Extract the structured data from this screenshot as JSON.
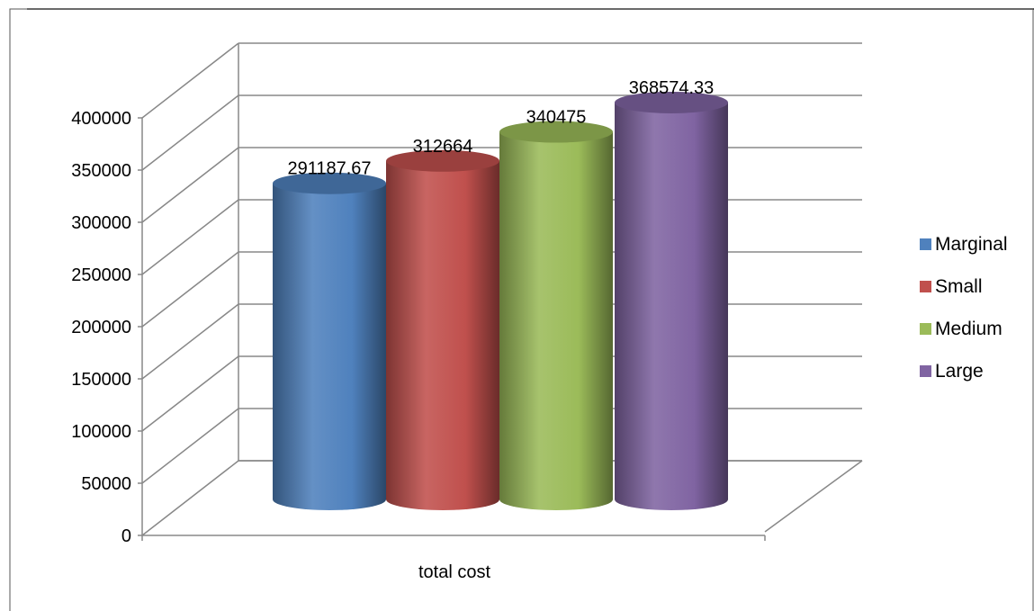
{
  "chart_data": {
    "type": "bar",
    "style": "3d-cylinder",
    "title": "",
    "xlabel": "",
    "ylabel": "",
    "categories": [
      "total cost"
    ],
    "series": [
      {
        "name": "Marginal",
        "values": [
          291187.67
        ],
        "value_label": "291187.67",
        "color": "#4F81BD"
      },
      {
        "name": "Small",
        "values": [
          312664
        ],
        "value_label": "312664",
        "color": "#C0504D"
      },
      {
        "name": "Medium",
        "values": [
          340475
        ],
        "value_label": "340475",
        "color": "#9BBB59"
      },
      {
        "name": "Large",
        "values": [
          368574.33
        ],
        "value_label": "368574.33",
        "color": "#8064A2"
      }
    ],
    "ylim": [
      0,
      400000
    ],
    "yticks": [
      0,
      50000,
      100000,
      150000,
      200000,
      250000,
      300000,
      350000,
      400000
    ],
    "ytick_labels": [
      "0",
      "50000",
      "100000",
      "150000",
      "200000",
      "250000",
      "300000",
      "350000",
      "400000"
    ],
    "grid": true,
    "legend_position": "right"
  }
}
